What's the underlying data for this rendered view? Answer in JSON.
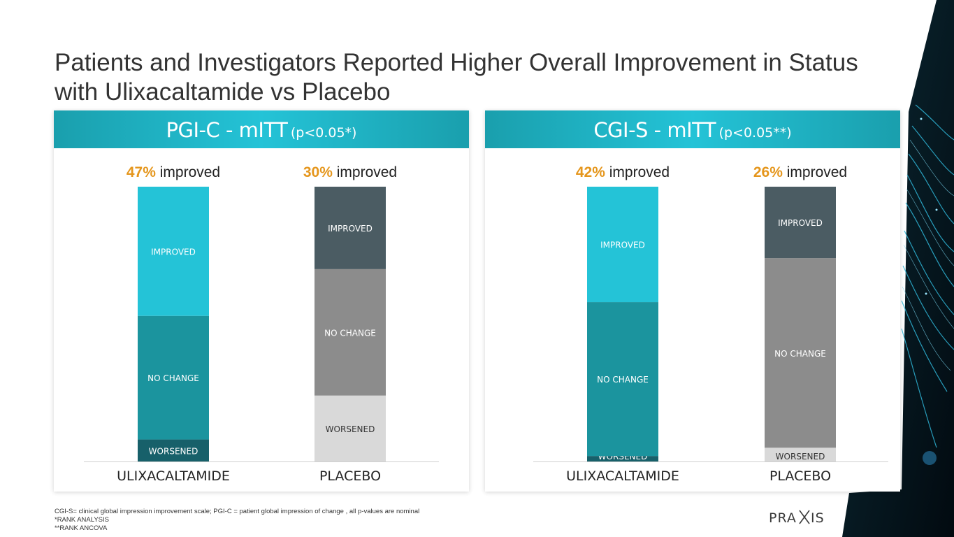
{
  "title": "Patients and Investigators Reported Higher Overall Improvement in Status with Ulixacaltamide vs Placebo",
  "colors": {
    "improved_active": "#24c3d7",
    "nochange_active": "#1b949e",
    "worsened_active": "#17606a",
    "improved_placebo": "#4b5c63",
    "nochange_placebo": "#8c8c8c",
    "worsened_placebo": "#d9d9d9",
    "highlight": "#e5961c",
    "header": "#1fb2c4"
  },
  "chart_data": [
    {
      "type": "bar",
      "stacked": true,
      "title": "PGI-C - mITT",
      "subtitle": "(p<0.05*)",
      "categories": [
        "ULIXACALTAMIDE",
        "PLACEBO"
      ],
      "percent_labels": [
        "47%",
        "30%"
      ],
      "improved_text": "improved",
      "series": [
        {
          "name": "WORSENED",
          "values": [
            8,
            24
          ]
        },
        {
          "name": "NO CHANGE",
          "values": [
            45,
            46
          ]
        },
        {
          "name": "IMPROVED",
          "values": [
            47,
            30
          ]
        }
      ],
      "ylim": [
        0,
        100
      ]
    },
    {
      "type": "bar",
      "stacked": true,
      "title": "CGI-S - mITT",
      "subtitle": "(p<0.05**)",
      "categories": [
        "ULIXACALTAMIDE",
        "PLACEBO"
      ],
      "percent_labels": [
        "42%",
        "26%"
      ],
      "improved_text": "improved",
      "series": [
        {
          "name": "WORSENED",
          "values": [
            2,
            5
          ]
        },
        {
          "name": "NO CHANGE",
          "values": [
            56,
            69
          ]
        },
        {
          "name": "IMPROVED",
          "values": [
            42,
            26
          ]
        }
      ],
      "ylim": [
        0,
        100
      ]
    }
  ],
  "footnotes": {
    "line1": "CGI-S= clinical global impression improvement scale; PGI-C = patient global impression of change , all p-values are nominal",
    "line2": "*RANK ANALYSIS",
    "line3": "**RANK ANCOVA"
  },
  "logo": {
    "text_left": "PRA",
    "text_right": "IS"
  }
}
